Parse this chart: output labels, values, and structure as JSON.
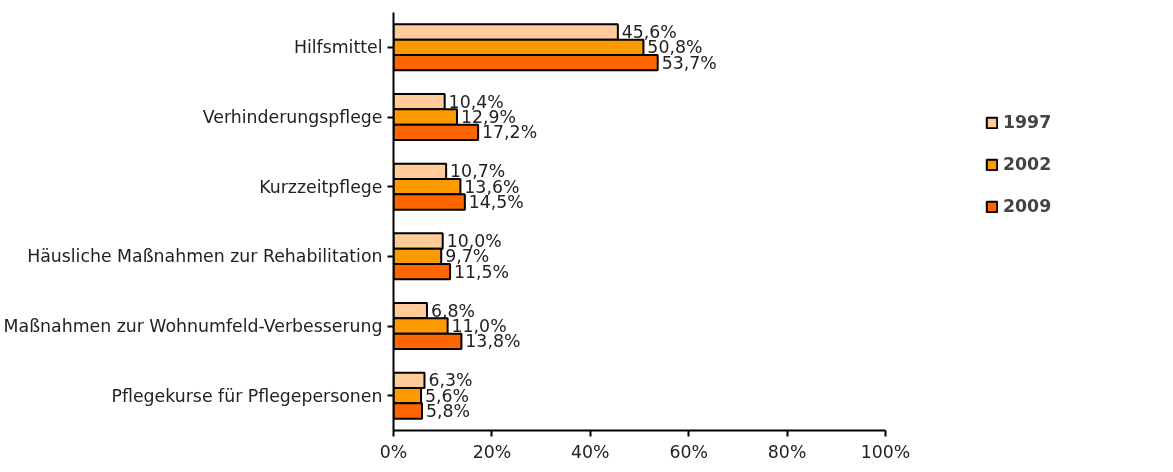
{
  "chart_data": {
    "type": "bar",
    "orientation": "horizontal",
    "categories": [
      "Hilfsmittel",
      "Verhinderungspflege",
      "Kurzzeitpflege",
      "Häusliche Maßnahmen zur Rehabilitation",
      "Maßnahmen zur Wohnumfeld-Verbesserung",
      "Pflegekurse für Pflegepersonen"
    ],
    "series": [
      {
        "name": "1997",
        "color": "#ffcc99",
        "values": [
          45.6,
          10.4,
          10.7,
          10.0,
          6.8,
          6.3
        ],
        "value_labels": [
          "45,6%",
          "10,4%",
          "10,7%",
          "10,0%",
          "6,8%",
          "6,3%"
        ]
      },
      {
        "name": "2002",
        "color": "#ff9900",
        "values": [
          50.8,
          12.9,
          13.6,
          9.7,
          11.0,
          5.6
        ],
        "value_labels": [
          "50,8%",
          "12,9%",
          "13,6%",
          "9,7%",
          "11,0%",
          "5,6%"
        ]
      },
      {
        "name": "2009",
        "color": "#ff6600",
        "values": [
          53.7,
          17.2,
          14.5,
          11.5,
          13.8,
          5.8
        ],
        "value_labels": [
          "53,7%",
          "17,2%",
          "14,5%",
          "11,5%",
          "13,8%",
          "5,8%"
        ]
      }
    ],
    "xlim": [
      0,
      100
    ],
    "xticks": [
      {
        "value": 0,
        "label": "0%"
      },
      {
        "value": 20,
        "label": "20%"
      },
      {
        "value": 40,
        "label": "40%"
      },
      {
        "value": 60,
        "label": "60%"
      },
      {
        "value": 80,
        "label": "80%"
      },
      {
        "value": 100,
        "label": "100%"
      }
    ],
    "grid": false,
    "legend": "top right"
  }
}
